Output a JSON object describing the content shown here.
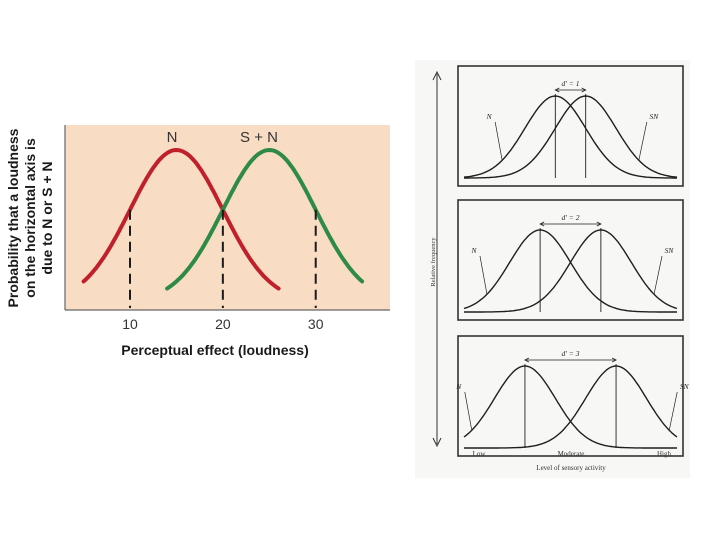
{
  "left_chart": {
    "type": "line",
    "ylabel_lines": [
      "Probability that a loudness",
      "on the horizontal axis is",
      "due to N or S + N"
    ],
    "xlabel": "Perceptual effect (loudness)",
    "xticks": [
      10,
      20,
      30
    ],
    "xlim": [
      3,
      38
    ],
    "ylim": [
      0,
      1
    ],
    "series": [
      {
        "name": "N",
        "color": "#c0202c",
        "mean": 15,
        "sd": 5.0,
        "xrange": [
          5,
          26
        ]
      },
      {
        "name": "S + N",
        "color": "#2e8b46",
        "mean": 25,
        "sd": 5.0,
        "xrange": [
          14,
          35
        ]
      }
    ],
    "criteria": [
      10,
      20,
      30
    ],
    "colors": {
      "background": "#f9dcc4",
      "axis": "#666666",
      "criterion": "#1a1a1a"
    }
  },
  "right_chart": {
    "type": "line",
    "ylabel": "Relative frequency",
    "xlabel": "Level of sensory activity",
    "xticks": [
      "Low",
      "Moderate",
      "High"
    ],
    "panels": [
      {
        "dprime_label": "d' = 1",
        "d": 1,
        "noise_label": "N",
        "signal_label": "SN"
      },
      {
        "dprime_label": "d' = 2",
        "d": 2,
        "noise_label": "N",
        "signal_label": "SN"
      },
      {
        "dprime_label": "d' = 3",
        "d": 3,
        "noise_label": "N",
        "signal_label": "SN"
      }
    ],
    "colors": {
      "line": "#1f1f1f",
      "background": "#f7f7f5"
    }
  }
}
